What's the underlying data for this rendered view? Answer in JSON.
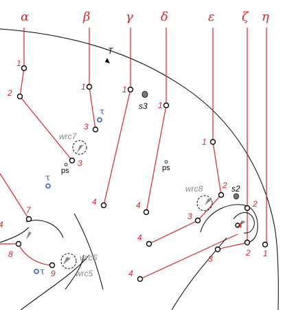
{
  "columns": [
    "α",
    "β",
    "γ",
    "δ",
    "ε",
    "ζ",
    "η"
  ],
  "point_labels": {
    "alpha": [
      "1",
      "2",
      "3"
    ],
    "beta": [
      "1",
      "3"
    ],
    "gamma": [
      "1",
      "4"
    ],
    "delta": [
      "1",
      "4"
    ],
    "epsilon": [
      "1",
      "2",
      "3",
      "4"
    ],
    "zeta": [
      "2",
      "4"
    ],
    "eta": [
      "1",
      "2",
      "3"
    ],
    "left": [
      "7",
      "8",
      "9",
      "4"
    ]
  },
  "labels": {
    "T": "T",
    "s3": "s3",
    "s2": "s2",
    "wrc7": "wrc7",
    "wrc8": "wrc8",
    "wrc6": "wrc6",
    "wrc5": "wrc5",
    "ps": "ps",
    "tau": "τ"
  },
  "colors": {
    "red": "#d8262b",
    "blue": "#3a5fb0",
    "gray": "#888888"
  }
}
